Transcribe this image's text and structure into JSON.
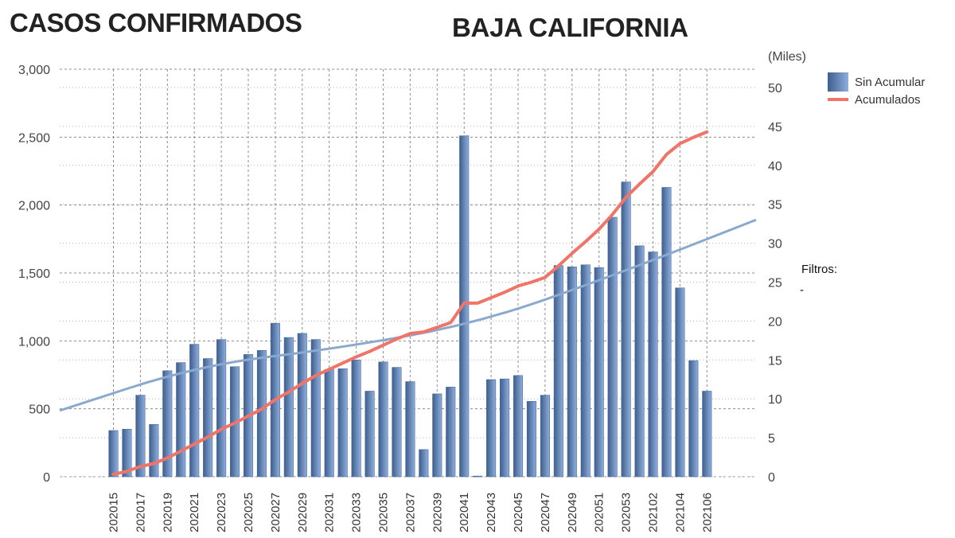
{
  "header": {
    "title_left": "CASOS CONFIRMADOS",
    "title_center": "BAJA CALIFORNIA"
  },
  "filters": {
    "label": "Filtros:",
    "value": "-"
  },
  "colors": {
    "bar_dark": "#3e5f8e",
    "bar_light": "#8eaedd",
    "cumulative_line": "#f07467",
    "trend_line": "#8aa9cf",
    "grid": "#8c8c8c"
  },
  "chart_data": {
    "type": "bar+line",
    "title": "CASOS CONFIRMADOS - BAJA CALIFORNIA",
    "left_axis": {
      "range": [
        0,
        3000
      ],
      "ticks": [
        0,
        500,
        1000,
        1500,
        2000,
        2500,
        3000
      ],
      "tick_labels": [
        "0",
        "500",
        "1,000",
        "1,500",
        "2,000",
        "2,500",
        "3,000"
      ]
    },
    "right_axis": {
      "label": "(Miles)",
      "range": [
        0,
        50
      ],
      "ticks": [
        0,
        5,
        10,
        15,
        20,
        25,
        30,
        35,
        40,
        45,
        50
      ],
      "tick_labels": [
        "0",
        "5",
        "10",
        "15",
        "20",
        "25",
        "30",
        "35",
        "40",
        "45",
        "50"
      ]
    },
    "categories": [
      "202015",
      "202016",
      "202017",
      "202018",
      "202019",
      "202020",
      "202021",
      "202022",
      "202023",
      "202024",
      "202025",
      "202026",
      "202027",
      "202028",
      "202029",
      "202030",
      "202031",
      "202032",
      "202033",
      "202034",
      "202035",
      "202036",
      "202037",
      "202038",
      "202039",
      "202040",
      "202041",
      "202042",
      "202043",
      "202044",
      "202045",
      "202046",
      "202047",
      "202048",
      "202049",
      "202050",
      "202051",
      "202052",
      "202053",
      "202101",
      "202102",
      "202103",
      "202104",
      "202105",
      "202106"
    ],
    "x_tick_labels": [
      "202015",
      "202017",
      "202019",
      "202021",
      "202023",
      "202025",
      "202027",
      "202029",
      "202031",
      "202033",
      "202035",
      "202037",
      "202039",
      "202041",
      "202043",
      "202045",
      "202047",
      "202049",
      "202051",
      "202053",
      "202102",
      "202104",
      "202106"
    ],
    "series": [
      {
        "name": "Sin Acumular",
        "type": "bar",
        "axis": "left",
        "values": [
          340,
          350,
          600,
          385,
          780,
          840,
          975,
          870,
          1010,
          810,
          900,
          930,
          1130,
          1025,
          1055,
          1010,
          790,
          795,
          860,
          630,
          845,
          805,
          700,
          200,
          610,
          660,
          2510,
          5,
          715,
          720,
          745,
          555,
          600,
          1555,
          1545,
          1560,
          1540,
          1910,
          2170,
          1700,
          1655,
          2130,
          1390,
          855,
          630
        ]
      },
      {
        "name": "Acumulados",
        "type": "line",
        "axis": "right",
        "unit": "thousands",
        "values": [
          0.3,
          0.7,
          1.3,
          1.7,
          2.4,
          3.3,
          4.2,
          5.1,
          6.1,
          6.9,
          7.8,
          8.7,
          9.9,
          10.9,
          12.0,
          13.0,
          13.8,
          14.6,
          15.4,
          16.1,
          16.9,
          17.7,
          18.4,
          18.6,
          19.2,
          19.8,
          22.3,
          22.3,
          23.0,
          23.7,
          24.5,
          25.0,
          25.6,
          27.1,
          28.7,
          30.2,
          31.8,
          33.7,
          35.9,
          37.6,
          39.2,
          41.4,
          42.8,
          43.6,
          44.3
        ]
      }
    ],
    "trend": {
      "name": "trend",
      "type": "line",
      "axis": "right",
      "x_range": [
        "start",
        "end"
      ],
      "values": [
        8.5,
        14.3,
        16.5,
        19.7,
        26.0,
        33.0
      ]
    },
    "legend": [
      {
        "label": "Sin Acumular",
        "kind": "bar"
      },
      {
        "label": "Acumulados",
        "kind": "line"
      }
    ],
    "legend_position": "top-right",
    "grid": true
  }
}
